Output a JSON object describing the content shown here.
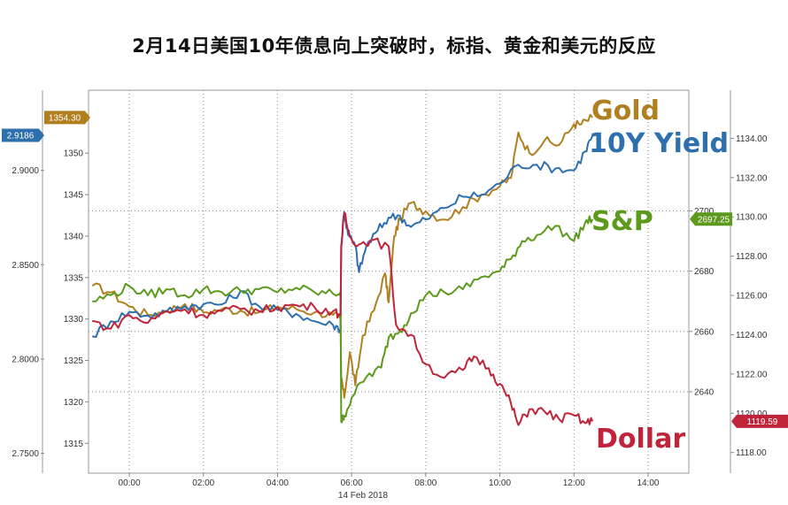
{
  "title": "2月14日美国10年债息向上突破时，标指、黄金和美元的反应",
  "chart_data": {
    "type": "line",
    "x_ticks": [
      "00:00",
      "02:00",
      "04:00",
      "06:00",
      "08:00",
      "10:00",
      "12:00",
      "14:00"
    ],
    "x_tick_values": [
      0,
      2,
      4,
      6,
      8,
      10,
      12,
      14
    ],
    "date_label": "14 Feb 2018",
    "xlim": [
      -1.1,
      15.1
    ],
    "axes": {
      "yield": {
        "ticks": [
          "2.9000",
          "2.8500",
          "2.8000",
          "2.7500"
        ],
        "tick_values": [
          2.9,
          2.85,
          2.8,
          2.75
        ],
        "ylim": [
          2.7395,
          2.9425
        ],
        "last": "2.9186",
        "color": "#2e6fad"
      },
      "gold": {
        "ticks": [
          "1350",
          "1345",
          "1340",
          "1335",
          "1330",
          "1325",
          "1320",
          "1315"
        ],
        "tick_values": [
          1350,
          1345,
          1340,
          1335,
          1330,
          1325,
          1320,
          1315
        ],
        "ylim": [
          1311.4,
          1357.6
        ],
        "last": "1354.30",
        "color": "#b07f1f"
      },
      "spx": {
        "ticks": [
          "2700",
          "2680",
          "2660",
          "2640"
        ],
        "tick_values": [
          2700,
          2680,
          2660,
          2640
        ],
        "ylim": [
          2613.0,
          2740.0
        ],
        "last": "2697.25",
        "color": "#5c9a1d"
      },
      "dollar": {
        "ticks": [
          "1134.00",
          "1132.00",
          "1130.00",
          "1128.00",
          "1126.00",
          "1124.00",
          "1122.00",
          "1120.00",
          "1118.00"
        ],
        "tick_values": [
          1134,
          1132,
          1130,
          1128,
          1126,
          1124,
          1122,
          1120,
          1118
        ],
        "ylim": [
          1116.95,
          1136.45
        ],
        "last": "1119.59",
        "color": "#c0243a"
      }
    },
    "series": [
      {
        "name": "Gold",
        "axis": "gold",
        "color": "#b07f1f",
        "points": [
          [
            -1.0,
            1334.0
          ],
          [
            -0.5,
            1333.2
          ],
          [
            0.0,
            1331.5
          ],
          [
            0.5,
            1330.5
          ],
          [
            1.0,
            1331.0
          ],
          [
            1.5,
            1331.8
          ],
          [
            2.0,
            1330.8
          ],
          [
            2.5,
            1331.2
          ],
          [
            3.0,
            1331.0
          ],
          [
            3.5,
            1330.8
          ],
          [
            4.0,
            1331.5
          ],
          [
            4.5,
            1331.2
          ],
          [
            5.0,
            1330.8
          ],
          [
            5.5,
            1330.5
          ],
          [
            5.7,
            1330.0
          ],
          [
            5.72,
            1323.0
          ],
          [
            5.8,
            1320.5
          ],
          [
            5.95,
            1326.0
          ],
          [
            6.1,
            1322.0
          ],
          [
            6.3,
            1328.0
          ],
          [
            6.6,
            1331.0
          ],
          [
            6.9,
            1335.5
          ],
          [
            7.0,
            1332.0
          ],
          [
            7.15,
            1340.0
          ],
          [
            7.3,
            1342.0
          ],
          [
            7.6,
            1344.0
          ],
          [
            8.0,
            1343.0
          ],
          [
            8.5,
            1342.0
          ],
          [
            9.0,
            1343.5
          ],
          [
            9.5,
            1345.0
          ],
          [
            10.0,
            1346.0
          ],
          [
            10.3,
            1347.0
          ],
          [
            10.5,
            1352.5
          ],
          [
            10.8,
            1350.0
          ],
          [
            11.2,
            1351.5
          ],
          [
            11.6,
            1351.0
          ],
          [
            12.0,
            1353.5
          ],
          [
            12.2,
            1353.5
          ],
          [
            12.5,
            1354.3
          ]
        ]
      },
      {
        "name": "10Y Yield",
        "axis": "yield",
        "color": "#2e6fad",
        "points": [
          [
            -1.0,
            2.812
          ],
          [
            -0.5,
            2.82
          ],
          [
            0.0,
            2.825
          ],
          [
            0.5,
            2.823
          ],
          [
            1.0,
            2.825
          ],
          [
            1.5,
            2.828
          ],
          [
            2.0,
            2.829
          ],
          [
            2.5,
            2.829
          ],
          [
            3.0,
            2.836
          ],
          [
            3.5,
            2.828
          ],
          [
            4.0,
            2.826
          ],
          [
            4.5,
            2.824
          ],
          [
            5.0,
            2.82
          ],
          [
            5.5,
            2.818
          ],
          [
            5.7,
            2.816
          ],
          [
            5.72,
            2.86
          ],
          [
            5.8,
            2.878
          ],
          [
            5.9,
            2.866
          ],
          [
            6.1,
            2.86
          ],
          [
            6.2,
            2.846
          ],
          [
            6.4,
            2.86
          ],
          [
            6.7,
            2.868
          ],
          [
            7.0,
            2.875
          ],
          [
            7.3,
            2.876
          ],
          [
            7.6,
            2.87
          ],
          [
            8.0,
            2.874
          ],
          [
            8.5,
            2.88
          ],
          [
            9.0,
            2.886
          ],
          [
            9.5,
            2.887
          ],
          [
            10.0,
            2.893
          ],
          [
            10.5,
            2.903
          ],
          [
            11.0,
            2.903
          ],
          [
            11.5,
            2.901
          ],
          [
            12.0,
            2.9
          ],
          [
            12.3,
            2.91
          ],
          [
            12.5,
            2.9186
          ]
        ]
      },
      {
        "name": "S&P",
        "axis": "spx",
        "color": "#5c9a1d",
        "points": [
          [
            -1.0,
            2670.0
          ],
          [
            -0.5,
            2672.0
          ],
          [
            0.0,
            2675.0
          ],
          [
            0.5,
            2672.0
          ],
          [
            1.0,
            2674.0
          ],
          [
            1.5,
            2672.0
          ],
          [
            2.0,
            2674.0
          ],
          [
            2.5,
            2673.0
          ],
          [
            3.0,
            2673.5
          ],
          [
            3.5,
            2674.0
          ],
          [
            4.0,
            2673.0
          ],
          [
            4.5,
            2674.5
          ],
          [
            5.0,
            2673.0
          ],
          [
            5.5,
            2672.5
          ],
          [
            5.7,
            2673.0
          ],
          [
            5.72,
            2630.0
          ],
          [
            5.8,
            2632.0
          ],
          [
            6.0,
            2638.0
          ],
          [
            6.4,
            2645.0
          ],
          [
            6.8,
            2648.0
          ],
          [
            7.0,
            2658.0
          ],
          [
            7.3,
            2660.0
          ],
          [
            7.6,
            2666.0
          ],
          [
            8.0,
            2672.0
          ],
          [
            8.5,
            2673.0
          ],
          [
            9.0,
            2674.0
          ],
          [
            9.5,
            2678.0
          ],
          [
            10.0,
            2680.0
          ],
          [
            10.3,
            2684.0
          ],
          [
            10.6,
            2690.0
          ],
          [
            11.0,
            2692.0
          ],
          [
            11.5,
            2695.0
          ],
          [
            12.0,
            2690.0
          ],
          [
            12.3,
            2696.0
          ],
          [
            12.5,
            2697.25
          ]
        ]
      },
      {
        "name": "Dollar",
        "axis": "dollar",
        "color": "#c0243a",
        "points": [
          [
            -1.0,
            1124.7
          ],
          [
            -0.5,
            1124.3
          ],
          [
            0.0,
            1125.0
          ],
          [
            0.5,
            1124.6
          ],
          [
            1.0,
            1125.2
          ],
          [
            1.5,
            1125.3
          ],
          [
            2.0,
            1125.0
          ],
          [
            2.5,
            1125.2
          ],
          [
            3.0,
            1125.3
          ],
          [
            3.5,
            1125.2
          ],
          [
            4.0,
            1125.4
          ],
          [
            4.5,
            1125.5
          ],
          [
            5.0,
            1125.4
          ],
          [
            5.5,
            1125.2
          ],
          [
            5.7,
            1125.0
          ],
          [
            5.72,
            1128.5
          ],
          [
            5.8,
            1130.2
          ],
          [
            5.95,
            1129.0
          ],
          [
            6.2,
            1128.6
          ],
          [
            6.5,
            1128.8
          ],
          [
            7.0,
            1128.5
          ],
          [
            7.2,
            1124.5
          ],
          [
            7.6,
            1124.0
          ],
          [
            8.0,
            1122.5
          ],
          [
            8.5,
            1121.8
          ],
          [
            9.0,
            1122.2
          ],
          [
            9.3,
            1122.9
          ],
          [
            9.7,
            1122.3
          ],
          [
            10.0,
            1121.5
          ],
          [
            10.3,
            1120.5
          ],
          [
            10.5,
            1119.4
          ],
          [
            10.8,
            1120.2
          ],
          [
            11.2,
            1120.1
          ],
          [
            11.6,
            1119.7
          ],
          [
            12.0,
            1119.9
          ],
          [
            12.3,
            1119.5
          ],
          [
            12.5,
            1119.59
          ]
        ]
      }
    ]
  }
}
